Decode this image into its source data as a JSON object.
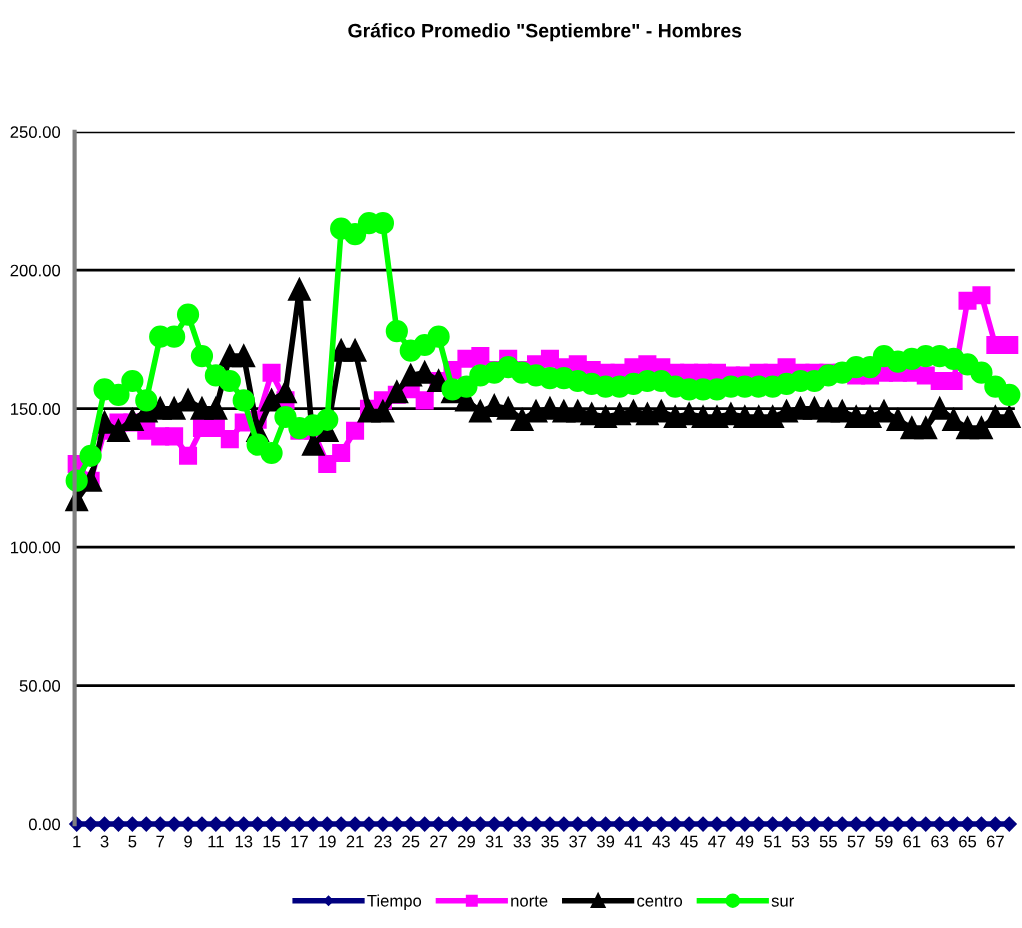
{
  "chart_data": {
    "type": "line",
    "title": "Gráfico Promedio \"Septiembre\" - Hombres",
    "categories": [
      "1",
      null,
      "3",
      null,
      "5",
      null,
      "7",
      null,
      "9",
      null,
      "11",
      null,
      "13",
      null,
      "15",
      null,
      "17",
      null,
      "19",
      null,
      "21",
      null,
      "23",
      null,
      "25",
      null,
      "27",
      null,
      "29",
      null,
      "31",
      null,
      "33",
      null,
      "35",
      null,
      "37",
      null,
      "39",
      null,
      "41",
      null,
      "43",
      null,
      "45",
      null,
      "47",
      null,
      "49",
      null,
      "51",
      null,
      "53",
      null,
      "55",
      null,
      "57",
      null,
      "59",
      null,
      "61",
      null,
      "63",
      null,
      "65",
      null,
      "67",
      null
    ],
    "series": [
      {
        "name": "Tiempo",
        "color": "#000080",
        "marker": "diamond",
        "values": [
          0,
          0,
          0,
          0,
          0,
          0,
          0,
          0,
          0,
          0,
          0,
          0,
          0,
          0,
          0,
          0,
          0,
          0,
          0,
          0,
          0,
          0,
          0,
          0,
          0,
          0,
          0,
          0,
          0,
          0,
          0,
          0,
          0,
          0,
          0,
          0,
          0,
          0,
          0,
          0,
          0,
          0,
          0,
          0,
          0,
          0,
          0,
          0,
          0,
          0,
          0,
          0,
          0,
          0,
          0,
          0,
          0,
          0,
          0,
          0,
          0,
          0,
          0,
          0,
          0,
          0,
          0,
          0
        ]
      },
      {
        "name": "norte",
        "color": "#ff00ff",
        "marker": "square",
        "values": [
          130,
          124,
          142,
          145,
          145,
          142,
          140,
          140,
          133,
          143,
          143,
          139,
          145,
          146,
          163,
          153,
          142,
          142,
          130,
          134,
          142,
          150,
          153,
          155,
          157,
          153,
          160,
          164,
          168,
          169,
          164,
          168,
          164,
          166,
          168,
          165,
          166,
          164,
          163,
          163,
          165,
          166,
          165,
          163,
          163,
          163,
          163,
          162,
          162,
          163,
          163,
          165,
          163,
          163,
          163,
          163,
          162,
          162,
          163,
          163,
          163,
          162,
          160,
          160,
          189,
          191,
          173,
          173
        ]
      },
      {
        "name": "centro",
        "color": "#000000",
        "marker": "triangle",
        "values": [
          117,
          124,
          145,
          142,
          146,
          149,
          150,
          150,
          153,
          150,
          150,
          169,
          169,
          142,
          153,
          156,
          193,
          137,
          142,
          171,
          171,
          149,
          149,
          156,
          162,
          163,
          160,
          156,
          153,
          149,
          151,
          150,
          146,
          149,
          150,
          149,
          149,
          148,
          147,
          148,
          149,
          148,
          149,
          147,
          148,
          147,
          147,
          148,
          147,
          147,
          147,
          149,
          150,
          150,
          149,
          149,
          147,
          147,
          149,
          146,
          143,
          143,
          150,
          146,
          143,
          143,
          147,
          147
        ]
      },
      {
        "name": "sur",
        "color": "#00ff00",
        "marker": "circle",
        "values": [
          124,
          133,
          157,
          155,
          160,
          153,
          176,
          176,
          184,
          169,
          162,
          160,
          153,
          137,
          134,
          147,
          143,
          144,
          146,
          215,
          213,
          217,
          217,
          178,
          171,
          173,
          176,
          157,
          158,
          162,
          163,
          165,
          163,
          162,
          161,
          161,
          160,
          159,
          158,
          158,
          159,
          160,
          160,
          158,
          157,
          157,
          157,
          158,
          158,
          158,
          158,
          159,
          160,
          160,
          162,
          163,
          165,
          165,
          169,
          167,
          168,
          169,
          169,
          168,
          166,
          163,
          158,
          155
        ]
      }
    ],
    "ylim": [
      0,
      250
    ],
    "yticks": [
      {
        "value": 0,
        "label": "0.00"
      },
      {
        "value": 50,
        "label": "50.00"
      },
      {
        "value": 100,
        "label": "100.00"
      },
      {
        "value": 150,
        "label": "150.00"
      },
      {
        "value": 200,
        "label": "200.00"
      },
      {
        "value": 250,
        "label": "250.00"
      }
    ],
    "grid": "y",
    "legend": "bottom",
    "line_style": "solid"
  }
}
